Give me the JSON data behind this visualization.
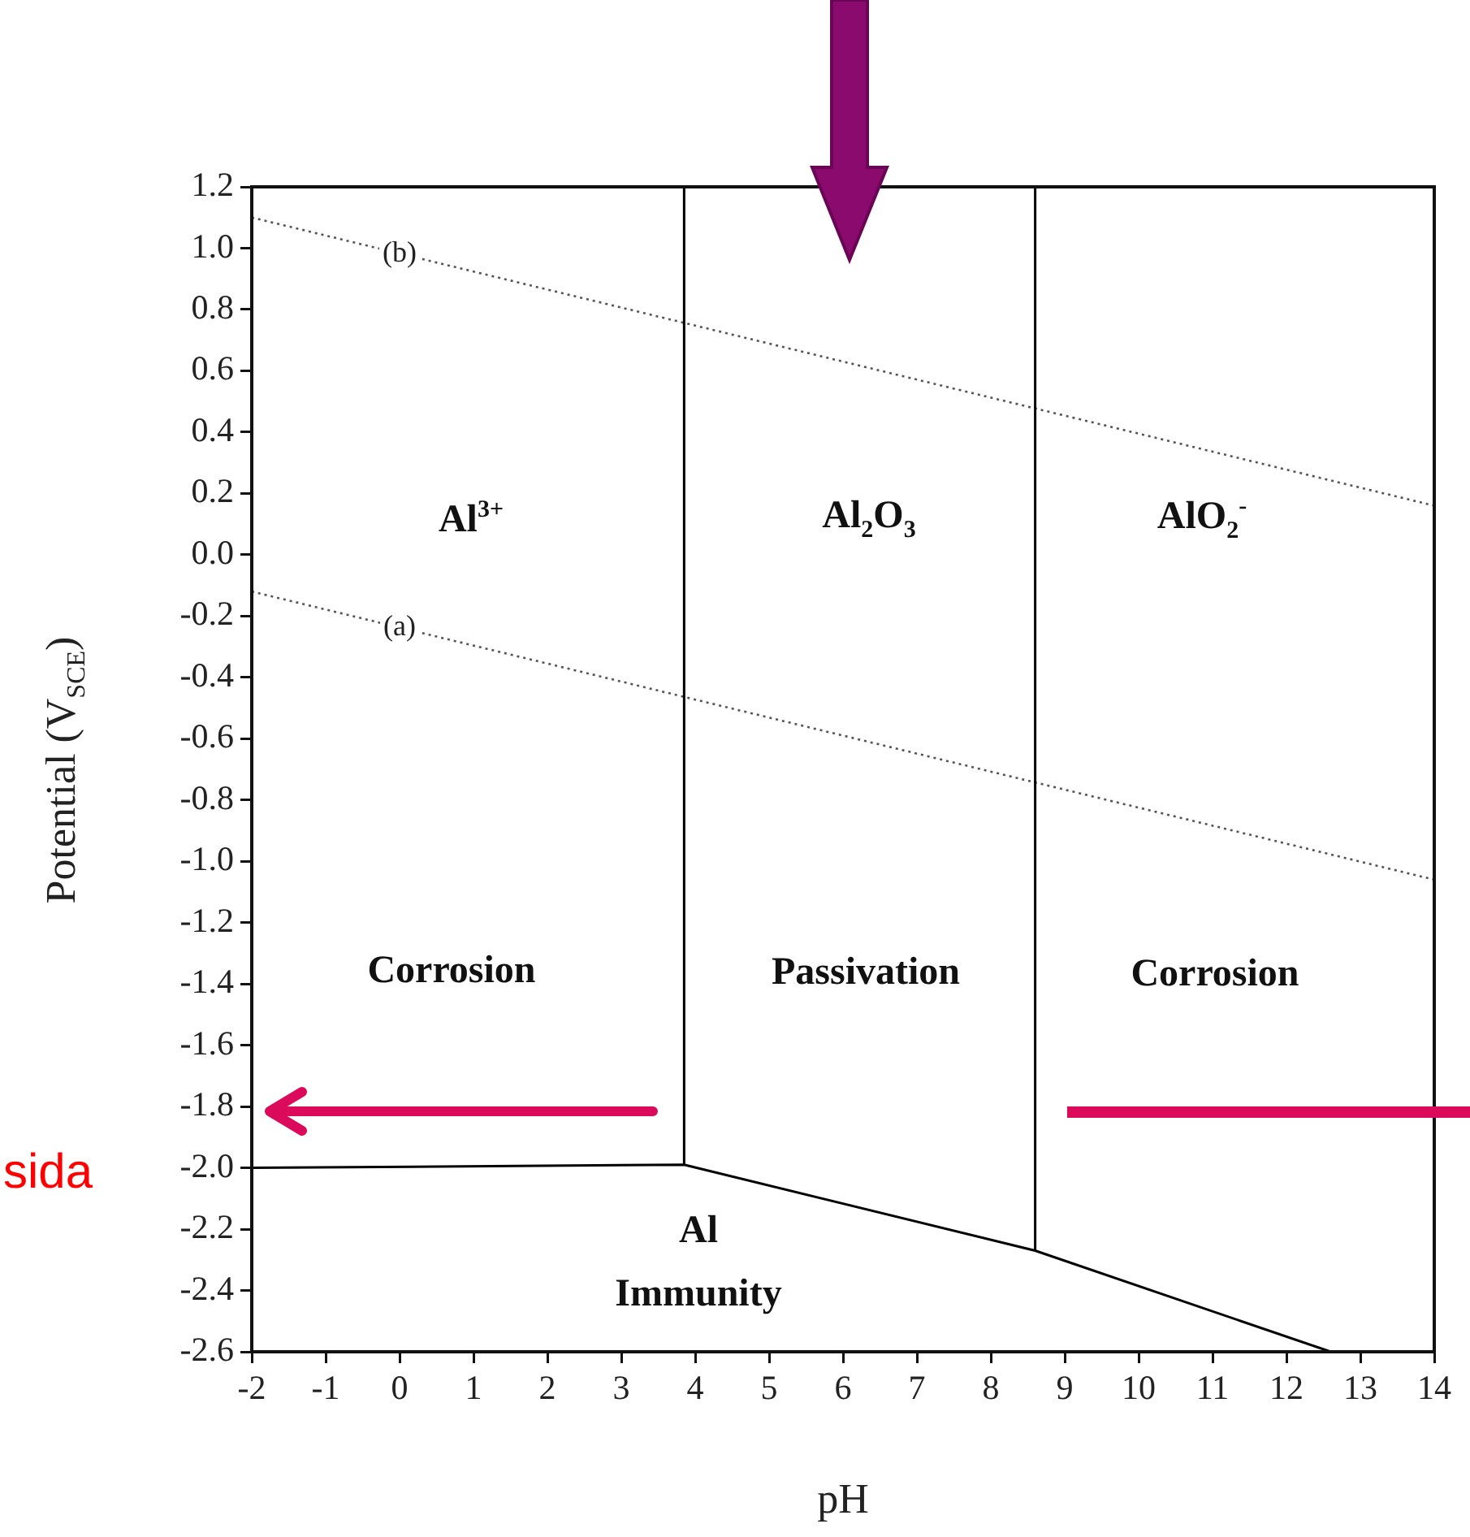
{
  "chart_data": {
    "type": "line",
    "xlabel": "pH",
    "ylabel": "Potential (V$_{SCE}$)",
    "xlim": [
      -2,
      14
    ],
    "xticks": [
      -2,
      -1,
      0,
      1,
      2,
      3,
      4,
      5,
      6,
      7,
      8,
      9,
      10,
      11,
      12,
      13,
      14
    ],
    "ylim": [
      -2.6,
      1.2
    ],
    "yticks": [
      {
        "value": -2.6,
        "label": "-2.6"
      },
      {
        "value": -2.4,
        "label": "-2.4"
      },
      {
        "value": -2.2,
        "label": "-2.2"
      },
      {
        "value": -2,
        "label": "-2.0"
      },
      {
        "value": -1.8,
        "label": "-1.8"
      },
      {
        "value": -1.6,
        "label": "-1.6"
      },
      {
        "value": -1.4,
        "label": "-1.4"
      },
      {
        "value": -1.2,
        "label": "-1.2"
      },
      {
        "value": -1,
        "label": "-1.0"
      },
      {
        "value": -0.8,
        "label": "-0.8"
      },
      {
        "value": -0.6,
        "label": "-0.6"
      },
      {
        "value": -0.4,
        "label": "-0.4"
      },
      {
        "value": -0.2,
        "label": "-0.2"
      },
      {
        "value": 0,
        "label": "0.0"
      },
      {
        "value": 0.2,
        "label": "0.2"
      },
      {
        "value": 0.4,
        "label": "0.4"
      },
      {
        "value": 0.6,
        "label": "0.6"
      },
      {
        "value": 0.8,
        "label": "0.8"
      },
      {
        "value": 1,
        "label": "1.0"
      },
      {
        "value": 1.2,
        "label": "1.2"
      }
    ],
    "grid": false,
    "legend": false,
    "marker": "none",
    "series": [
      {
        "color": "#000000",
        "x": [
          -2,
          3.85,
          8.6,
          12.6
        ],
        "values": [
          -2.0,
          -1.99,
          -2.27,
          -2.6
        ]
      },
      {
        "color": "#000000",
        "x": [
          3.85,
          3.85
        ],
        "values": [
          -1.99,
          1.2
        ]
      },
      {
        "color": "#000000",
        "x": [
          8.6,
          8.6
        ],
        "values": [
          -2.27,
          1.2
        ]
      },
      {
        "name": "(b)",
        "color": "#555555",
        "line_style": "dotted",
        "x": [
          -2,
          14
        ],
        "values": [
          1.1,
          0.16
        ]
      },
      {
        "name": "(a)",
        "color": "#555555",
        "line_style": "dotted",
        "x": [
          -2,
          14
        ],
        "values": [
          -0.12,
          -1.06
        ]
      }
    ],
    "annotations": [
      "Al$^{3+}$",
      "Al$_{2}$O$_{3}$",
      "AlO$_{2}$$^{-}$",
      "Corrosion",
      "Passivation",
      "Corrosion",
      "Al",
      "Immunity",
      "sida"
    ]
  }
}
